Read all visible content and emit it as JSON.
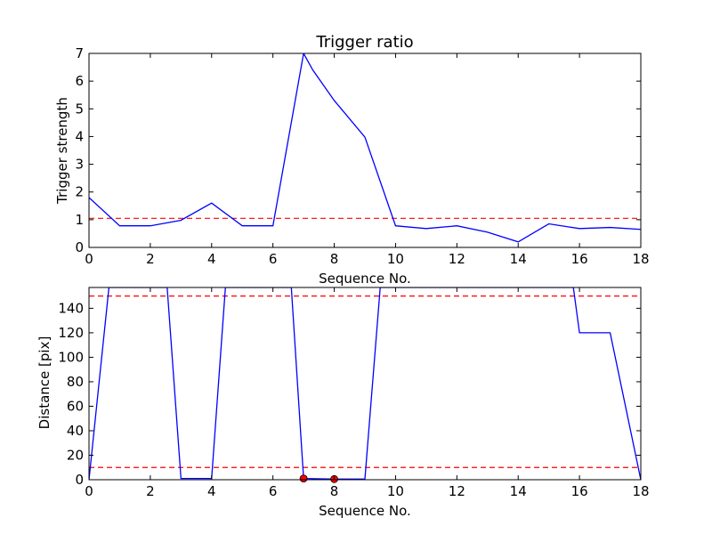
{
  "chart_data": [
    {
      "type": "line",
      "title": "Trigger ratio",
      "xlabel": "Sequence No.",
      "ylabel": "Trigger strength",
      "xlim": [
        0,
        18
      ],
      "ylim": [
        0,
        7
      ],
      "xticks": [
        0,
        2,
        4,
        6,
        8,
        10,
        12,
        14,
        16,
        18
      ],
      "yticks": [
        0,
        1,
        2,
        3,
        4,
        5,
        6,
        7
      ],
      "grid": false,
      "series": [
        {
          "color": "#0000ff",
          "x": [
            0,
            1,
            2,
            3,
            4,
            5,
            6,
            7,
            7.3,
            8,
            9,
            10,
            11,
            12,
            13,
            14,
            15,
            16,
            17,
            18
          ],
          "y": [
            1.8,
            0.78,
            0.78,
            0.98,
            1.6,
            0.78,
            0.78,
            7.0,
            6.4,
            5.3,
            3.98,
            0.78,
            0.68,
            0.78,
            0.55,
            0.2,
            0.85,
            0.68,
            0.72,
            0.65
          ]
        }
      ],
      "hlines": [
        {
          "y": 1.05,
          "color": "#ff0000",
          "style": "dashed"
        }
      ]
    },
    {
      "type": "line",
      "title": "",
      "xlabel": "Sequence No.",
      "ylabel": "Distance [pix]",
      "xlim": [
        0,
        18
      ],
      "ylim": [
        0,
        157
      ],
      "xticks": [
        0,
        2,
        4,
        6,
        8,
        10,
        12,
        14,
        16,
        18
      ],
      "yticks": [
        0,
        20,
        40,
        60,
        80,
        100,
        120,
        140
      ],
      "grid": false,
      "series": [
        {
          "color": "#0000ff",
          "x": [
            0,
            0.65,
            2.55,
            3,
            4,
            4.45,
            6.6,
            7,
            8,
            9,
            9.5,
            15.8,
            16,
            17,
            18
          ],
          "y": [
            0,
            157,
            157,
            1,
            1,
            157,
            157,
            1,
            0.5,
            0.5,
            157,
            157,
            120,
            120,
            0
          ]
        }
      ],
      "markers": [
        {
          "x": 7,
          "y": 1,
          "color": "#ff0000"
        },
        {
          "x": 8,
          "y": 0.5,
          "color": "#ff0000"
        }
      ],
      "hlines": [
        {
          "y": 150,
          "color": "#ff0000",
          "style": "dashed"
        },
        {
          "y": 10,
          "color": "#ff0000",
          "style": "dashed"
        }
      ]
    }
  ]
}
